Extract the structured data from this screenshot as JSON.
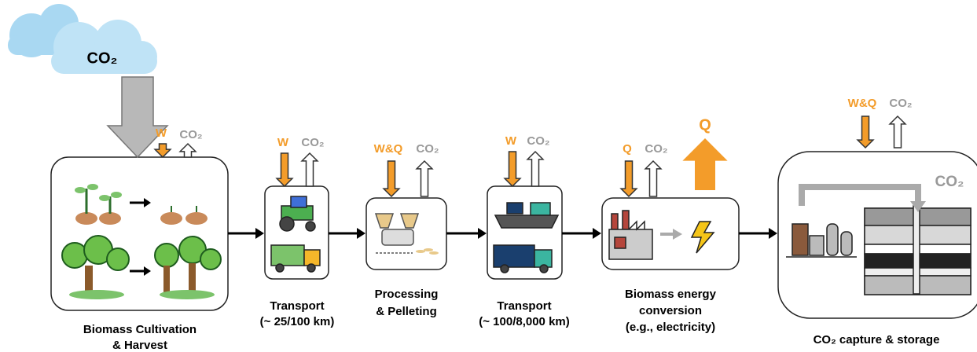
{
  "cloud": {
    "label": "CO₂"
  },
  "stages": [
    {
      "inputs": [
        "W",
        "CO₂"
      ],
      "caption": [
        "Biomass Cultivation",
        "& Harvest"
      ]
    },
    {
      "inputs": [
        "W",
        "CO₂"
      ],
      "caption": [
        "Transport",
        "(~ 25/100 km)"
      ]
    },
    {
      "inputs": [
        "W&Q",
        "CO₂"
      ],
      "caption": [
        "Processing",
        "& Pelleting"
      ]
    },
    {
      "inputs": [
        "W",
        "CO₂"
      ],
      "caption": [
        "Transport",
        "(~ 100/8,000 km)"
      ]
    },
    {
      "inputs": [
        "Q",
        "CO₂"
      ],
      "output": "Q",
      "caption": [
        "Biomass energy",
        "conversion",
        "(e.g., electricity)"
      ]
    },
    {
      "inputs": [
        "W&Q",
        "CO₂"
      ],
      "inner_label": "CO₂",
      "caption": [
        "CO₂ capture & storage"
      ]
    }
  ]
}
